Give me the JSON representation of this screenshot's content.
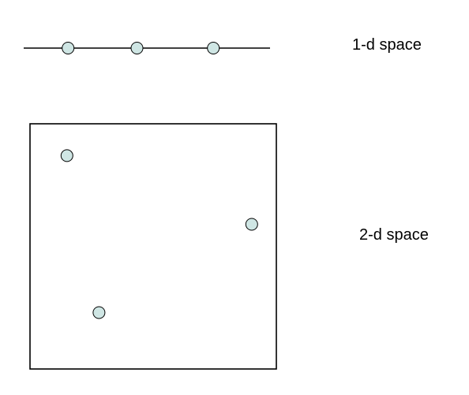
{
  "labels": {
    "one_d": "1-d space",
    "two_d": "2-d space"
  },
  "colors": {
    "point_fill": "#cfe6e4",
    "stroke": "#000000",
    "background": "#ffffff"
  },
  "one_d_space": {
    "points": [
      0.18,
      0.46,
      0.77
    ]
  },
  "two_d_space": {
    "points": [
      {
        "x": 0.15,
        "y": 0.87
      },
      {
        "x": 0.9,
        "y": 0.59
      },
      {
        "x": 0.28,
        "y": 0.23
      }
    ]
  }
}
